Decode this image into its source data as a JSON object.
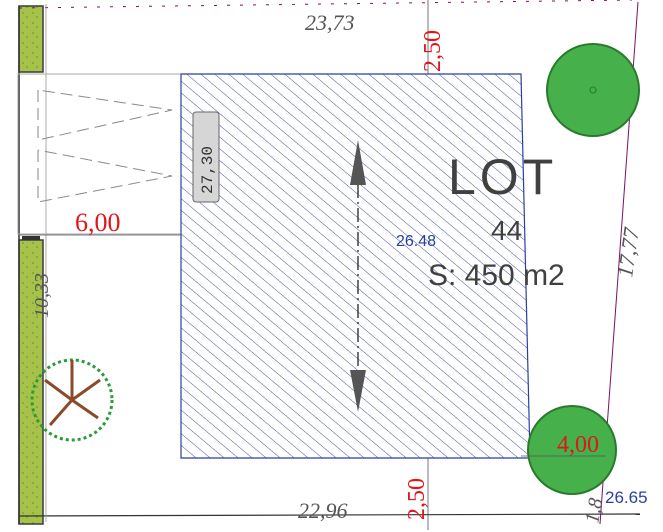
{
  "plan": {
    "lot_word": "LOT",
    "lot_number": "44",
    "surface": "S: 450 m2",
    "center_elevation": "26.48",
    "corner_elevation": "26.65",
    "box_label": "27,30",
    "dims": {
      "top_length": "23,73",
      "bottom_length": "22,96",
      "right_length": "17,77",
      "left_length": "10,33",
      "setback_top": "2,50",
      "setback_bottom": "2,50",
      "setback_left": "6,00",
      "setback_right": "4,00",
      "corner_small": "1,8"
    }
  },
  "colors": {
    "hatch": "#2b3fa0",
    "dimension_red": "#e0161b",
    "tree_green": "#46b04a",
    "hedge_green": "#a7c24a",
    "boundary": "#7a0f6a"
  }
}
